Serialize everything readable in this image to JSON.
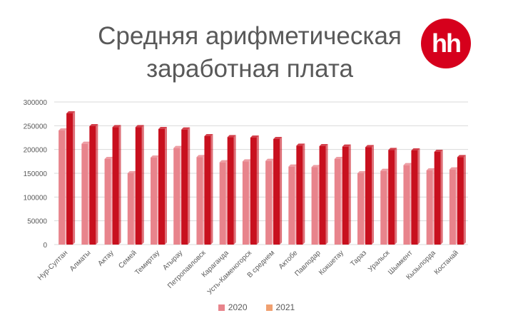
{
  "header": {
    "title_line1": "Средняя арифметическая",
    "title_line2": "заработная плата",
    "logo_text": "hh"
  },
  "colors": {
    "series_2020": "#e8848c",
    "series_2021": "#c8101e",
    "legend_2021": "#f0a070",
    "brand": "#d6001c"
  },
  "chart_data": {
    "type": "bar",
    "categories": [
      "Нур-Султан",
      "Алматы",
      "Актау",
      "Семей",
      "Темиртау",
      "Атырау",
      "Петропавловск",
      "Караганда",
      "Усть-Каменогорск",
      "В среднем",
      "Актобе",
      "Павлодар",
      "Кокшетау",
      "Тараз",
      "Уральск",
      "Шымкент",
      "Кызылорда",
      "Костанай"
    ],
    "series": [
      {
        "name": "2020",
        "values": [
          240000,
          212000,
          180000,
          150000,
          183000,
          203000,
          184000,
          173000,
          175000,
          176000,
          164000,
          163000,
          180000,
          150000,
          155000,
          167000,
          156000,
          158000
        ]
      },
      {
        "name": "2021",
        "values": [
          276000,
          249000,
          247000,
          247000,
          243000,
          242000,
          228000,
          226000,
          225000,
          222000,
          208000,
          207000,
          206000,
          205000,
          199000,
          198000,
          195000,
          184000
        ]
      }
    ],
    "ylim": [
      0,
      300000
    ],
    "yticks": [
      0,
      50000,
      100000,
      150000,
      200000,
      250000,
      300000
    ],
    "grid": true,
    "legend_position": "bottom"
  }
}
